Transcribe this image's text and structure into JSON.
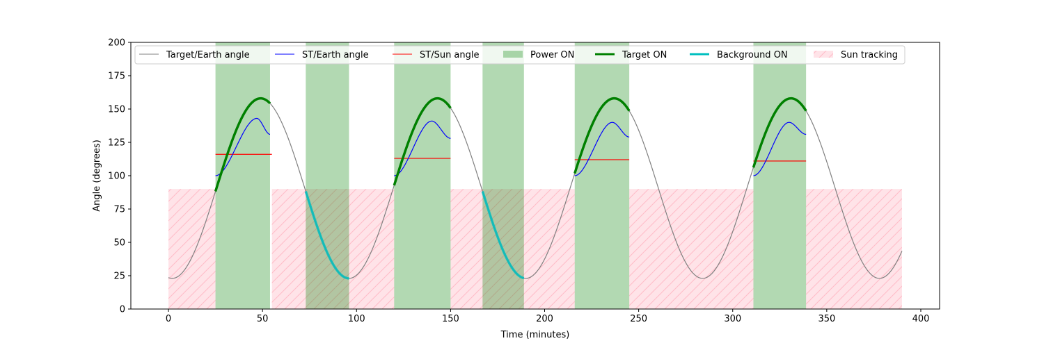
{
  "chart_data": {
    "type": "line",
    "xlabel": "Time (minutes)",
    "ylabel": "Angle (degrees)",
    "xlim": [
      -20,
      410
    ],
    "ylim": [
      0,
      200
    ],
    "xticks": [
      0,
      50,
      100,
      150,
      200,
      250,
      300,
      350,
      400
    ],
    "yticks": [
      0,
      25,
      50,
      75,
      100,
      125,
      150,
      175,
      200
    ],
    "legend_placement": "top",
    "legend": [
      {
        "label": "Target/Earth angle",
        "kind": "line",
        "color": "#808080",
        "width": 1
      },
      {
        "label": "ST/Earth angle",
        "kind": "line",
        "color": "#0000ff",
        "width": 1
      },
      {
        "label": "ST/Sun angle",
        "kind": "line",
        "color": "#ff0000",
        "width": 1
      },
      {
        "label": "Power ON",
        "kind": "patch",
        "color": "#008000"
      },
      {
        "label": "Target ON",
        "kind": "line",
        "color": "#008000",
        "width": 3
      },
      {
        "label": "Background ON",
        "kind": "line",
        "color": "#00bfbf",
        "width": 3
      },
      {
        "label": "Sun tracking",
        "kind": "hatch",
        "color": "#ffc0cb"
      }
    ],
    "target_earth_angle": {
      "period_min": 94,
      "min": 23,
      "max": 158,
      "x_range": [
        0,
        390
      ],
      "min_at": [
        2,
        96,
        190,
        284,
        378
      ],
      "max_at": [
        49,
        143,
        237,
        331
      ]
    },
    "power_on_intervals": [
      [
        25,
        54
      ],
      [
        73,
        96
      ],
      [
        120,
        150
      ],
      [
        167,
        189
      ],
      [
        216,
        245
      ],
      [
        311,
        339
      ]
    ],
    "target_on_intervals": [
      [
        25,
        54
      ],
      [
        120,
        150
      ],
      [
        216,
        245
      ],
      [
        311,
        339
      ]
    ],
    "background_on_intervals": [
      [
        73,
        96
      ],
      [
        167,
        189
      ]
    ],
    "sun_tracking": {
      "y_range": [
        0,
        90
      ],
      "intervals": [
        [
          0,
          25
        ],
        [
          55,
          120
        ],
        [
          150,
          216
        ],
        [
          245,
          311
        ],
        [
          339,
          390
        ]
      ]
    },
    "st_earth_angle": [
      {
        "x": [
          25,
          47,
          54
        ],
        "y": [
          100,
          143,
          131
        ]
      },
      {
        "x": [
          120,
          140,
          150
        ],
        "y": [
          100,
          141,
          128
        ]
      },
      {
        "x": [
          216,
          236,
          245
        ],
        "y": [
          100,
          140,
          129
        ]
      },
      {
        "x": [
          311,
          330,
          339
        ],
        "y": [
          100,
          140,
          131
        ]
      }
    ],
    "st_sun_angle": [
      {
        "x": [
          25,
          55
        ],
        "y": 116
      },
      {
        "x": [
          120,
          150
        ],
        "y": 113
      },
      {
        "x": [
          216,
          245
        ],
        "y": 112
      },
      {
        "x": [
          311,
          339
        ],
        "y": 111
      }
    ]
  }
}
